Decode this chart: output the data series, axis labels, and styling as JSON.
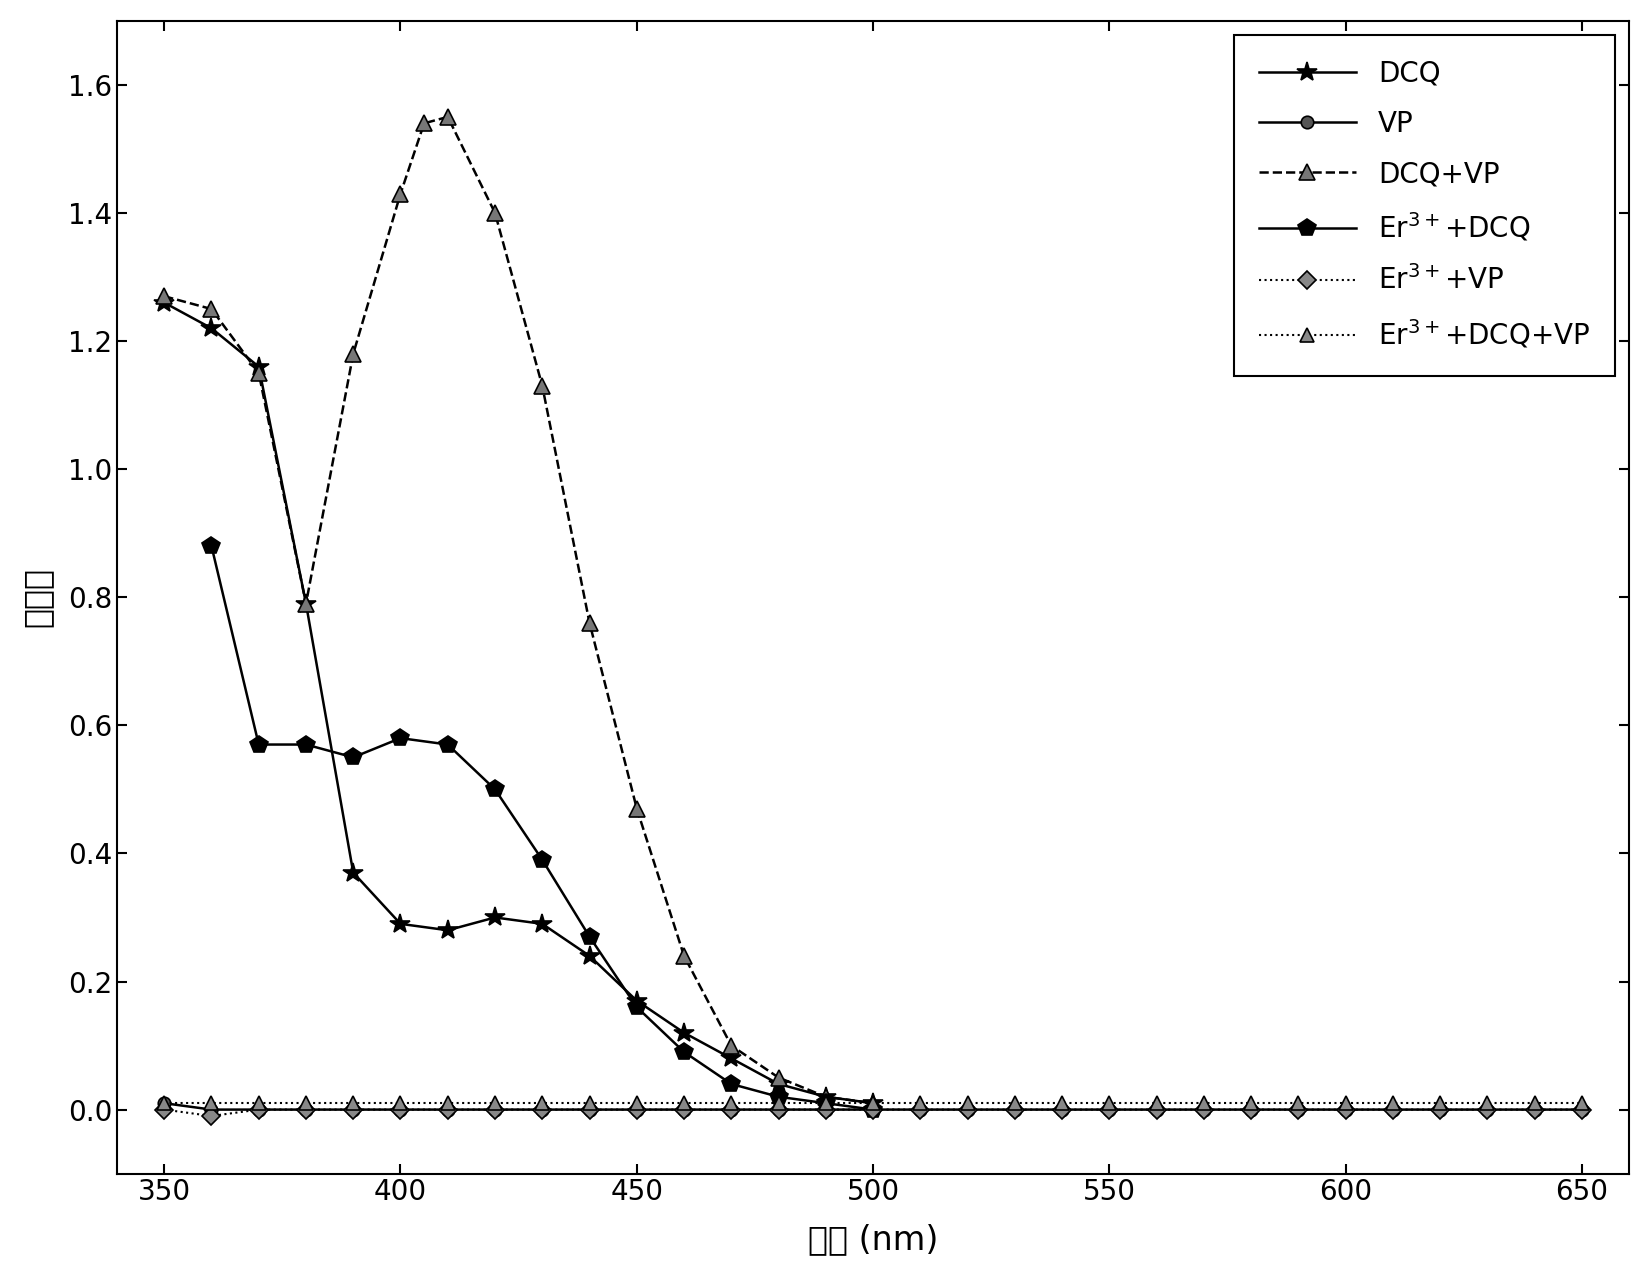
{
  "title": "",
  "xlabel": "波长 (nm)",
  "ylabel": "吸光率",
  "xlim": [
    340,
    660
  ],
  "ylim": [
    -0.1,
    1.7
  ],
  "xticks": [
    350,
    400,
    450,
    500,
    550,
    600,
    650
  ],
  "yticks": [
    0.0,
    0.2,
    0.4,
    0.6,
    0.8,
    1.0,
    1.2,
    1.4,
    1.6
  ],
  "series": [
    {
      "key": "DCQ",
      "label": "DCQ",
      "x": [
        350,
        360,
        370,
        380,
        390,
        400,
        410,
        420,
        430,
        440,
        450,
        460,
        470,
        480,
        490,
        500
      ],
      "y": [
        1.26,
        1.22,
        1.16,
        0.79,
        0.37,
        0.29,
        0.28,
        0.3,
        0.29,
        0.24,
        0.17,
        0.12,
        0.08,
        0.04,
        0.02,
        0.01
      ],
      "color": "#000000",
      "linestyle": "-",
      "marker": "*",
      "markersize": 15,
      "linewidth": 1.8,
      "markerfacecolor": "#000000",
      "markeredgecolor": "#000000"
    },
    {
      "key": "VP",
      "label": "VP",
      "x": [
        350,
        360,
        370,
        380,
        390,
        400,
        410,
        420,
        430,
        440,
        450,
        460,
        470,
        480,
        490,
        500,
        510,
        520,
        530,
        540,
        550,
        560,
        570,
        580,
        590,
        600,
        610,
        620,
        630,
        640,
        650
      ],
      "y": [
        0.01,
        0.0,
        0.0,
        0.0,
        0.0,
        0.0,
        0.0,
        0.0,
        0.0,
        0.0,
        0.0,
        0.0,
        0.0,
        0.0,
        0.0,
        0.0,
        0.0,
        0.0,
        0.0,
        0.0,
        0.0,
        0.0,
        0.0,
        0.0,
        0.0,
        0.0,
        0.0,
        0.0,
        0.0,
        0.0,
        0.0
      ],
      "color": "#000000",
      "linestyle": "-",
      "marker": "o",
      "markersize": 9,
      "linewidth": 1.8,
      "markerfacecolor": "#555555",
      "markeredgecolor": "#000000"
    },
    {
      "key": "DCQ_VP",
      "label": "DCQ+VP",
      "x": [
        350,
        360,
        370,
        380,
        390,
        400,
        405,
        410,
        420,
        430,
        440,
        450,
        460,
        470,
        480,
        490,
        500
      ],
      "y": [
        1.27,
        1.25,
        1.15,
        0.79,
        1.18,
        1.43,
        1.54,
        1.55,
        1.4,
        1.13,
        0.76,
        0.47,
        0.24,
        0.1,
        0.05,
        0.02,
        0.01
      ],
      "color": "#000000",
      "linestyle": "--",
      "marker": "^",
      "markersize": 11,
      "linewidth": 1.8,
      "markerfacecolor": "#777777",
      "markeredgecolor": "#000000"
    },
    {
      "key": "Er_DCQ",
      "label": "Er$^{3+}$+DCQ",
      "x": [
        360,
        370,
        380,
        390,
        400,
        410,
        420,
        430,
        440,
        450,
        460,
        470,
        480,
        490,
        500
      ],
      "y": [
        0.88,
        0.57,
        0.57,
        0.55,
        0.58,
        0.57,
        0.5,
        0.39,
        0.27,
        0.16,
        0.09,
        0.04,
        0.02,
        0.01,
        0.0
      ],
      "color": "#000000",
      "linestyle": "-",
      "marker": "p",
      "markersize": 13,
      "linewidth": 1.8,
      "markerfacecolor": "#000000",
      "markeredgecolor": "#000000"
    },
    {
      "key": "Er_VP",
      "label": "Er$^{3+}$+VP",
      "x": [
        350,
        360,
        370,
        380,
        390,
        400,
        410,
        420,
        430,
        440,
        450,
        460,
        470,
        480,
        490,
        500,
        510,
        520,
        530,
        540,
        550,
        560,
        570,
        580,
        590,
        600,
        610,
        620,
        630,
        640,
        650
      ],
      "y": [
        0.0,
        -0.01,
        0.0,
        0.0,
        0.0,
        0.0,
        0.0,
        0.0,
        0.0,
        0.0,
        0.0,
        0.0,
        0.0,
        0.0,
        0.0,
        0.0,
        0.0,
        0.0,
        0.0,
        0.0,
        0.0,
        0.0,
        0.0,
        0.0,
        0.0,
        0.0,
        0.0,
        0.0,
        0.0,
        0.0,
        0.0
      ],
      "color": "#000000",
      "linestyle": ":",
      "marker": "D",
      "markersize": 9,
      "linewidth": 1.5,
      "markerfacecolor": "#888888",
      "markeredgecolor": "#000000"
    },
    {
      "key": "Er_DCQ_VP",
      "label": "Er$^{3+}$+DCQ+VP",
      "x": [
        350,
        360,
        370,
        380,
        390,
        400,
        410,
        420,
        430,
        440,
        450,
        460,
        470,
        480,
        490,
        500,
        510,
        520,
        530,
        540,
        550,
        560,
        570,
        580,
        590,
        600,
        610,
        620,
        630,
        640,
        650
      ],
      "y": [
        0.01,
        0.01,
        0.01,
        0.01,
        0.01,
        0.01,
        0.01,
        0.01,
        0.01,
        0.01,
        0.01,
        0.01,
        0.01,
        0.01,
        0.01,
        0.01,
        0.01,
        0.01,
        0.01,
        0.01,
        0.01,
        0.01,
        0.01,
        0.01,
        0.01,
        0.01,
        0.01,
        0.01,
        0.01,
        0.01,
        0.01
      ],
      "color": "#000000",
      "linestyle": ":",
      "marker": "^",
      "markersize": 10,
      "linewidth": 1.5,
      "markerfacecolor": "#888888",
      "markeredgecolor": "#000000"
    }
  ],
  "legend_fontsize": 20,
  "tick_fontsize": 20,
  "label_fontsize": 24,
  "background_color": "#ffffff"
}
